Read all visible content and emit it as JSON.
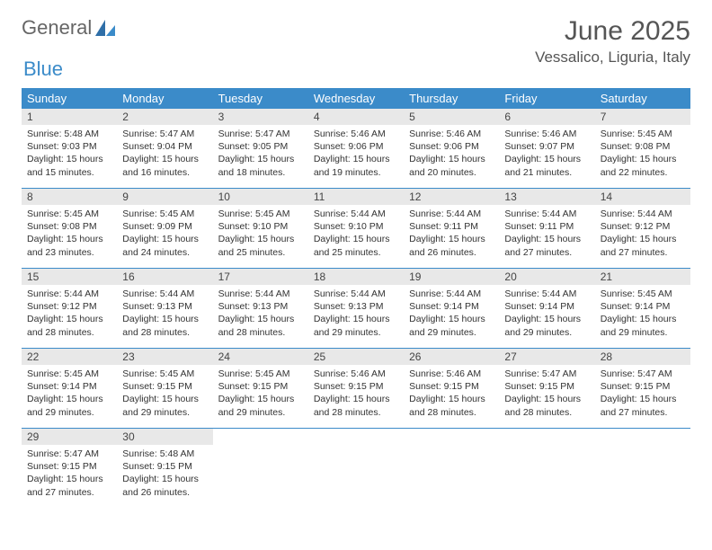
{
  "brand": {
    "part1": "General",
    "part2": "Blue"
  },
  "title": "June 2025",
  "location": "Vessalico, Liguria, Italy",
  "colors": {
    "accent": "#3b8bc9",
    "header_text": "#ffffff",
    "daynum_bg": "#e8e8e8",
    "text": "#333333",
    "muted": "#555555"
  },
  "weekdays": [
    "Sunday",
    "Monday",
    "Tuesday",
    "Wednesday",
    "Thursday",
    "Friday",
    "Saturday"
  ],
  "days": [
    {
      "n": 1,
      "sr": "5:48 AM",
      "ss": "9:03 PM",
      "dl": "15 hours and 15 minutes."
    },
    {
      "n": 2,
      "sr": "5:47 AM",
      "ss": "9:04 PM",
      "dl": "15 hours and 16 minutes."
    },
    {
      "n": 3,
      "sr": "5:47 AM",
      "ss": "9:05 PM",
      "dl": "15 hours and 18 minutes."
    },
    {
      "n": 4,
      "sr": "5:46 AM",
      "ss": "9:06 PM",
      "dl": "15 hours and 19 minutes."
    },
    {
      "n": 5,
      "sr": "5:46 AM",
      "ss": "9:06 PM",
      "dl": "15 hours and 20 minutes."
    },
    {
      "n": 6,
      "sr": "5:46 AM",
      "ss": "9:07 PM",
      "dl": "15 hours and 21 minutes."
    },
    {
      "n": 7,
      "sr": "5:45 AM",
      "ss": "9:08 PM",
      "dl": "15 hours and 22 minutes."
    },
    {
      "n": 8,
      "sr": "5:45 AM",
      "ss": "9:08 PM",
      "dl": "15 hours and 23 minutes."
    },
    {
      "n": 9,
      "sr": "5:45 AM",
      "ss": "9:09 PM",
      "dl": "15 hours and 24 minutes."
    },
    {
      "n": 10,
      "sr": "5:45 AM",
      "ss": "9:10 PM",
      "dl": "15 hours and 25 minutes."
    },
    {
      "n": 11,
      "sr": "5:44 AM",
      "ss": "9:10 PM",
      "dl": "15 hours and 25 minutes."
    },
    {
      "n": 12,
      "sr": "5:44 AM",
      "ss": "9:11 PM",
      "dl": "15 hours and 26 minutes."
    },
    {
      "n": 13,
      "sr": "5:44 AM",
      "ss": "9:11 PM",
      "dl": "15 hours and 27 minutes."
    },
    {
      "n": 14,
      "sr": "5:44 AM",
      "ss": "9:12 PM",
      "dl": "15 hours and 27 minutes."
    },
    {
      "n": 15,
      "sr": "5:44 AM",
      "ss": "9:12 PM",
      "dl": "15 hours and 28 minutes."
    },
    {
      "n": 16,
      "sr": "5:44 AM",
      "ss": "9:13 PM",
      "dl": "15 hours and 28 minutes."
    },
    {
      "n": 17,
      "sr": "5:44 AM",
      "ss": "9:13 PM",
      "dl": "15 hours and 28 minutes."
    },
    {
      "n": 18,
      "sr": "5:44 AM",
      "ss": "9:13 PM",
      "dl": "15 hours and 29 minutes."
    },
    {
      "n": 19,
      "sr": "5:44 AM",
      "ss": "9:14 PM",
      "dl": "15 hours and 29 minutes."
    },
    {
      "n": 20,
      "sr": "5:44 AM",
      "ss": "9:14 PM",
      "dl": "15 hours and 29 minutes."
    },
    {
      "n": 21,
      "sr": "5:45 AM",
      "ss": "9:14 PM",
      "dl": "15 hours and 29 minutes."
    },
    {
      "n": 22,
      "sr": "5:45 AM",
      "ss": "9:14 PM",
      "dl": "15 hours and 29 minutes."
    },
    {
      "n": 23,
      "sr": "5:45 AM",
      "ss": "9:15 PM",
      "dl": "15 hours and 29 minutes."
    },
    {
      "n": 24,
      "sr": "5:45 AM",
      "ss": "9:15 PM",
      "dl": "15 hours and 29 minutes."
    },
    {
      "n": 25,
      "sr": "5:46 AM",
      "ss": "9:15 PM",
      "dl": "15 hours and 28 minutes."
    },
    {
      "n": 26,
      "sr": "5:46 AM",
      "ss": "9:15 PM",
      "dl": "15 hours and 28 minutes."
    },
    {
      "n": 27,
      "sr": "5:47 AM",
      "ss": "9:15 PM",
      "dl": "15 hours and 28 minutes."
    },
    {
      "n": 28,
      "sr": "5:47 AM",
      "ss": "9:15 PM",
      "dl": "15 hours and 27 minutes."
    },
    {
      "n": 29,
      "sr": "5:47 AM",
      "ss": "9:15 PM",
      "dl": "15 hours and 27 minutes."
    },
    {
      "n": 30,
      "sr": "5:48 AM",
      "ss": "9:15 PM",
      "dl": "15 hours and 26 minutes."
    }
  ],
  "labels": {
    "sunrise": "Sunrise:",
    "sunset": "Sunset:",
    "daylight": "Daylight:"
  }
}
